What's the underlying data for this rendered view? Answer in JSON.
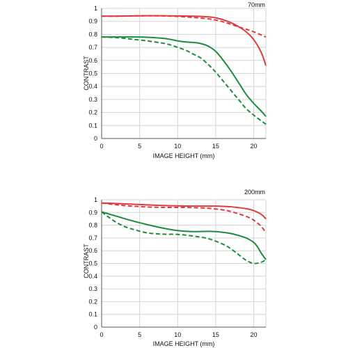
{
  "chart_data": [
    {
      "type": "line",
      "title": "70mm",
      "xlabel": "IMAGE HEIGHT (mm)",
      "ylabel": "CONTRAST",
      "xlim": [
        0,
        21.6
      ],
      "ylim": [
        0,
        1
      ],
      "xticks": [
        "0",
        "5",
        "10",
        "15",
        "20"
      ],
      "yticks": [
        "0",
        "0.1",
        "0.2",
        "0.3",
        "0.4",
        "0.5",
        "0.6",
        "0.7",
        "0.8",
        "0.9",
        "1"
      ],
      "grid": true,
      "series": [
        {
          "color": "#e03a3e",
          "dash": false,
          "x": [
            0,
            2,
            4,
            6,
            8,
            10,
            12,
            13,
            14,
            15,
            16,
            17,
            18,
            19,
            20,
            21,
            21.6
          ],
          "y": [
            0.94,
            0.94,
            0.942,
            0.943,
            0.943,
            0.942,
            0.94,
            0.938,
            0.935,
            0.927,
            0.912,
            0.89,
            0.86,
            0.82,
            0.76,
            0.66,
            0.56
          ]
        },
        {
          "color": "#e03a3e",
          "dash": true,
          "x": [
            0,
            2,
            4,
            6,
            8,
            10,
            12,
            14,
            15,
            16,
            17,
            18,
            19,
            20,
            21,
            21.6
          ],
          "y": [
            0.94,
            0.94,
            0.942,
            0.943,
            0.942,
            0.938,
            0.93,
            0.92,
            0.91,
            0.896,
            0.878,
            0.858,
            0.84,
            0.82,
            0.795,
            0.78
          ]
        },
        {
          "color": "#1a8c3c",
          "dash": false,
          "x": [
            0,
            2,
            4,
            6,
            8,
            9,
            10,
            11,
            12,
            13,
            14,
            15,
            16,
            17,
            18,
            19,
            20,
            21,
            21.6
          ],
          "y": [
            0.78,
            0.78,
            0.78,
            0.778,
            0.77,
            0.762,
            0.75,
            0.742,
            0.738,
            0.73,
            0.71,
            0.67,
            0.6,
            0.52,
            0.43,
            0.34,
            0.27,
            0.21,
            0.17
          ]
        },
        {
          "color": "#1a8c3c",
          "dash": true,
          "x": [
            0,
            2,
            4,
            6,
            8,
            9,
            10,
            11,
            12,
            13,
            14,
            15,
            16,
            17,
            18,
            19,
            20,
            21,
            21.6
          ],
          "y": [
            0.78,
            0.775,
            0.763,
            0.75,
            0.733,
            0.72,
            0.7,
            0.68,
            0.65,
            0.62,
            0.57,
            0.51,
            0.44,
            0.37,
            0.3,
            0.23,
            0.18,
            0.135,
            0.11
          ]
        }
      ]
    },
    {
      "type": "line",
      "title": "200mm",
      "xlabel": "IMAGE HEIGHT (mm)",
      "ylabel": "CONTRAST",
      "xlim": [
        0,
        21.6
      ],
      "ylim": [
        0,
        1
      ],
      "xticks": [
        "0",
        "5",
        "10",
        "15",
        "20"
      ],
      "yticks": [
        "0",
        "0.1",
        "0.2",
        "0.3",
        "0.4",
        "0.5",
        "0.6",
        "0.7",
        "0.8",
        "0.9",
        "1"
      ],
      "grid": true,
      "series": [
        {
          "color": "#e03a3e",
          "dash": false,
          "x": [
            0,
            2,
            4,
            6,
            8,
            10,
            12,
            14,
            15,
            16,
            17,
            18,
            19,
            20,
            21,
            21.6
          ],
          "y": [
            0.975,
            0.97,
            0.965,
            0.96,
            0.955,
            0.952,
            0.95,
            0.95,
            0.95,
            0.948,
            0.945,
            0.938,
            0.93,
            0.915,
            0.885,
            0.85
          ]
        },
        {
          "color": "#e03a3e",
          "dash": true,
          "x": [
            0,
            2,
            4,
            6,
            8,
            10,
            12,
            14,
            16,
            17,
            18,
            19,
            20,
            21,
            21.6
          ],
          "y": [
            0.975,
            0.96,
            0.95,
            0.943,
            0.94,
            0.94,
            0.938,
            0.933,
            0.92,
            0.908,
            0.89,
            0.87,
            0.84,
            0.79,
            0.74
          ]
        },
        {
          "color": "#1a8c3c",
          "dash": false,
          "x": [
            0,
            2,
            4,
            6,
            8,
            10,
            12,
            14,
            15,
            16,
            17,
            18,
            19,
            20,
            20.5,
            21,
            21.6
          ],
          "y": [
            0.905,
            0.87,
            0.835,
            0.805,
            0.778,
            0.758,
            0.75,
            0.752,
            0.75,
            0.744,
            0.735,
            0.72,
            0.7,
            0.665,
            0.63,
            0.58,
            0.53
          ]
        },
        {
          "color": "#1a8c3c",
          "dash": true,
          "x": [
            0,
            1,
            2,
            3,
            4,
            6,
            8,
            10,
            12,
            14,
            16,
            17,
            18,
            19,
            20,
            21,
            21.6
          ],
          "y": [
            0.905,
            0.86,
            0.82,
            0.79,
            0.77,
            0.74,
            0.73,
            0.728,
            0.715,
            0.695,
            0.65,
            0.615,
            0.57,
            0.525,
            0.5,
            0.51,
            0.53
          ]
        }
      ]
    }
  ]
}
